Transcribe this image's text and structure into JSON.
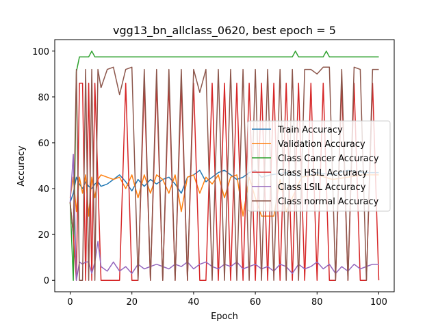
{
  "chart_data": {
    "type": "line",
    "title": "vgg13_bn_allclass_0620, best epoch = 5",
    "xlabel": "Epoch",
    "ylabel": "Accuracy",
    "xlim": [
      -5,
      105
    ],
    "ylim": [
      -5,
      105
    ],
    "xticks": [
      0,
      20,
      40,
      60,
      80,
      100
    ],
    "yticks": [
      0,
      20,
      40,
      60,
      80,
      100
    ],
    "legend_position": "center-right",
    "grid": false,
    "series": [
      {
        "name": "Train Accuracy",
        "color": "#1f77b4",
        "x": [
          0,
          1,
          2,
          3,
          4,
          5,
          6,
          7,
          8,
          9,
          10,
          12,
          14,
          16,
          18,
          20,
          22,
          24,
          26,
          28,
          30,
          32,
          34,
          36,
          38,
          40,
          42,
          44,
          46,
          48,
          50,
          52,
          54,
          56,
          58,
          60,
          62,
          65,
          70,
          75,
          80,
          85,
          90,
          95,
          100
        ],
        "values": [
          34,
          38,
          45,
          42,
          40,
          43,
          41,
          40,
          42,
          43,
          41,
          42,
          44,
          46,
          43,
          39,
          44,
          41,
          44,
          42,
          44,
          45,
          42,
          38,
          45,
          46,
          48,
          43,
          45,
          47,
          48,
          46,
          44,
          45,
          47,
          48,
          45,
          46,
          47,
          45,
          47,
          46,
          48,
          47,
          47
        ]
      },
      {
        "name": "Validation Accuracy",
        "color": "#ff7f0e",
        "x": [
          0,
          1,
          2,
          3,
          4,
          5,
          6,
          7,
          8,
          9,
          10,
          12,
          14,
          16,
          18,
          20,
          22,
          24,
          26,
          28,
          30,
          32,
          34,
          36,
          38,
          40,
          42,
          44,
          46,
          48,
          50,
          52,
          54,
          56,
          58,
          60,
          62,
          64,
          66,
          68,
          70,
          75,
          80,
          85,
          90,
          95,
          100
        ],
        "values": [
          36,
          45,
          30,
          45,
          38,
          46,
          28,
          45,
          36,
          44,
          46,
          45,
          44,
          45,
          40,
          46,
          36,
          46,
          38,
          46,
          44,
          38,
          46,
          30,
          45,
          46,
          38,
          45,
          42,
          46,
          36,
          45,
          46,
          28,
          45,
          36,
          28,
          28,
          28,
          44,
          30,
          45,
          46,
          44,
          45,
          46,
          46
        ]
      },
      {
        "name": "Class Cancer Accuracy",
        "color": "#2ca02c",
        "x": [
          0,
          1,
          2,
          3,
          4,
          5,
          6,
          7,
          8,
          9,
          10,
          20,
          30,
          40,
          50,
          60,
          70,
          72,
          73,
          74,
          80,
          82,
          83,
          84,
          90,
          100
        ],
        "values": [
          34,
          0,
          91,
          97.5,
          97.5,
          97.5,
          97.5,
          100,
          97.5,
          97.5,
          97.5,
          97.5,
          97.5,
          97.5,
          97.5,
          97.5,
          97.5,
          97.5,
          100,
          97.5,
          97.5,
          97.5,
          100,
          97.5,
          97.5,
          97.5
        ]
      },
      {
        "name": "Class HSIL Accuracy",
        "color": "#d62728",
        "x": [
          0,
          1,
          2,
          3,
          4,
          5,
          6,
          7,
          8,
          10,
          12,
          14,
          16,
          18,
          20,
          22,
          24,
          26,
          28,
          30,
          32,
          34,
          36,
          38,
          40,
          42,
          44,
          46,
          48,
          50,
          52,
          54,
          56,
          58,
          60,
          62,
          64,
          66,
          68,
          70,
          72,
          74,
          76,
          78,
          80,
          82,
          84,
          86,
          88,
          90,
          92,
          94,
          96,
          98,
          100
        ],
        "values": [
          34,
          20,
          0,
          86,
          86,
          0,
          86,
          0,
          86,
          0,
          0,
          0,
          0,
          86,
          0,
          0,
          86,
          0,
          86,
          0,
          86,
          0,
          86,
          0,
          86,
          0,
          0,
          86,
          0,
          86,
          0,
          86,
          0,
          86,
          0,
          86,
          0,
          86,
          0,
          86,
          0,
          86,
          0,
          86,
          0,
          86,
          0,
          0,
          86,
          0,
          86,
          0,
          0,
          86,
          0
        ]
      },
      {
        "name": "Class LSIL Accuracy",
        "color": "#9467bd",
        "x": [
          0,
          1,
          2,
          3,
          4,
          5,
          6,
          7,
          8,
          9,
          10,
          12,
          14,
          16,
          18,
          20,
          22,
          24,
          26,
          28,
          30,
          32,
          34,
          36,
          38,
          40,
          42,
          44,
          46,
          48,
          50,
          52,
          54,
          56,
          58,
          60,
          62,
          64,
          66,
          68,
          70,
          72,
          74,
          76,
          78,
          80,
          82,
          84,
          86,
          88,
          90,
          92,
          94,
          96,
          98,
          100
        ],
        "values": [
          34,
          55,
          0,
          8,
          7,
          8,
          8,
          3,
          8,
          17,
          6,
          4,
          8,
          4,
          6,
          3,
          7,
          5,
          6,
          7,
          6,
          5,
          7,
          6,
          8,
          5,
          7,
          8,
          6,
          5,
          7,
          6,
          8,
          5,
          6,
          7,
          5,
          6,
          4,
          7,
          6,
          3,
          7,
          5,
          6,
          8,
          5,
          7,
          3,
          6,
          4,
          7,
          5,
          6,
          7,
          7
        ]
      },
      {
        "name": "Class normal Accuracy",
        "color": "#8c564b",
        "x": [
          0,
          1,
          2,
          3,
          4,
          5,
          6,
          7,
          8,
          9,
          10,
          12,
          14,
          16,
          18,
          20,
          22,
          24,
          26,
          28,
          30,
          32,
          34,
          36,
          38,
          40,
          42,
          44,
          46,
          48,
          50,
          52,
          54,
          56,
          58,
          60,
          62,
          64,
          66,
          68,
          70,
          72,
          74,
          76,
          78,
          80,
          82,
          84,
          86,
          88,
          90,
          92,
          94,
          96,
          98,
          100
        ],
        "values": [
          34,
          20,
          92,
          0,
          0,
          92,
          0,
          92,
          0,
          92,
          84,
          92,
          93,
          81,
          92,
          93,
          0,
          92,
          0,
          92,
          0,
          92,
          0,
          92,
          0,
          92,
          82,
          92,
          0,
          92,
          0,
          92,
          0,
          92,
          0,
          92,
          0,
          92,
          0,
          92,
          0,
          92,
          0,
          92,
          92,
          90,
          93,
          93,
          0,
          92,
          0,
          93,
          92,
          0,
          92,
          92
        ]
      }
    ]
  }
}
